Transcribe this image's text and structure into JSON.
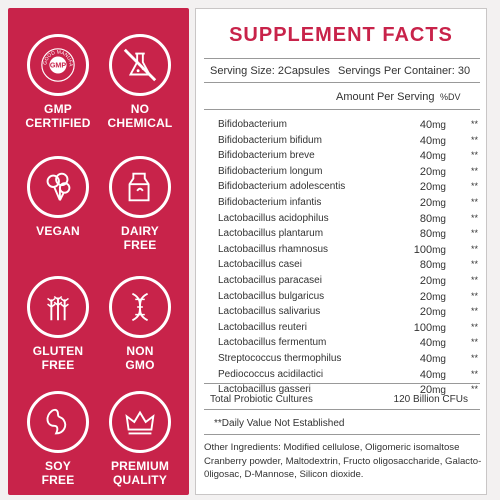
{
  "badges": [
    {
      "line1": "GMP",
      "line2": "CERTIFIED",
      "icon": "gmp-seal-icon",
      "ring_text": "GOOD MANUFACTURING PRACTICE",
      "seal_text": "GMP"
    },
    {
      "line1": "NO",
      "line2": "CHEMICAL",
      "icon": "no-chemical-flask-icon"
    },
    {
      "line1": "VEGAN",
      "line2": "",
      "icon": "vegan-broccoli-icon"
    },
    {
      "line1": "DAIRY",
      "line2": "FREE",
      "icon": "milk-carton-icon"
    },
    {
      "line1": "GLUTEN",
      "line2": "FREE",
      "icon": "wheat-icon"
    },
    {
      "line1": "NON",
      "line2": "GMO",
      "icon": "dna-icon"
    },
    {
      "line1": "SOY",
      "line2": "FREE",
      "icon": "soybean-icon"
    },
    {
      "line1": "PREMIUM",
      "line2": "QUALITY",
      "icon": "crown-icon"
    }
  ],
  "facts": {
    "title": "SUPPLEMENT FACTS",
    "serving_size": "Serving Size: 2Capsules",
    "servings_per_container": "Servings Per Container: 30",
    "amount_header": "Amount Per Serving",
    "dv_header": "%DV",
    "ingredients": [
      {
        "name": "Bifidobacterium",
        "amount": "40",
        "unit": "mg",
        "dv": "**"
      },
      {
        "name": "Bifidobacterium bifidum",
        "amount": "40",
        "unit": "mg",
        "dv": "**"
      },
      {
        "name": "Bifidobacterium breve",
        "amount": "40",
        "unit": "mg",
        "dv": "**"
      },
      {
        "name": "Bifidobacterium longum",
        "amount": "20",
        "unit": "mg",
        "dv": "**"
      },
      {
        "name": "Bifidobacterium adolescentis",
        "amount": "20",
        "unit": "mg",
        "dv": "**"
      },
      {
        "name": "Bifidobacterium infantis",
        "amount": "20",
        "unit": "mg",
        "dv": "**"
      },
      {
        "name": "Lactobacillus acidophilus",
        "amount": "80",
        "unit": "mg",
        "dv": "**"
      },
      {
        "name": "Lactobacillus plantarum",
        "amount": "80",
        "unit": "mg",
        "dv": "**"
      },
      {
        "name": "Lactobacillus rhamnosus",
        "amount": "100",
        "unit": "mg",
        "dv": "**"
      },
      {
        "name": "Lactobacillus casei",
        "amount": "80",
        "unit": "mg",
        "dv": "**"
      },
      {
        "name": "Lactobacillus paracasei",
        "amount": "20",
        "unit": "mg",
        "dv": "**"
      },
      {
        "name": "Lactobacillus bulgaricus",
        "amount": "20",
        "unit": "mg",
        "dv": "**"
      },
      {
        "name": "Lactobacillus salivarius",
        "amount": "20",
        "unit": "mg",
        "dv": "**"
      },
      {
        "name": "Lactobacillus reuteri",
        "amount": "100",
        "unit": "mg",
        "dv": "**"
      },
      {
        "name": "Lactobacillus fermentum",
        "amount": "40",
        "unit": "mg",
        "dv": "**"
      },
      {
        "name": "Streptococcus thermophilus",
        "amount": "40",
        "unit": "mg",
        "dv": "**"
      },
      {
        "name": "Pediococcus acidilactici",
        "amount": "40",
        "unit": "mg",
        "dv": "**"
      },
      {
        "name": "Lactobacillus gasseri",
        "amount": "20",
        "unit": "mg",
        "dv": "**"
      }
    ],
    "total_label": "Total Probiotic Cultures",
    "total_value": "120 Billion CFUs",
    "dv_note": "**Daily Value Not Established",
    "other_ingredients": "Other Ingredients: Modified cellulose, Oligomeric isomaltose Cranberry powder, Maltodextrin, Fructo oligosaccharide, Galacto-0ligosac, D-Mannose, Silicon dioxide."
  },
  "colors": {
    "brand": "#c8234a",
    "panel_bg": "#ffffff",
    "page_bg": "#f3f1f1"
  }
}
